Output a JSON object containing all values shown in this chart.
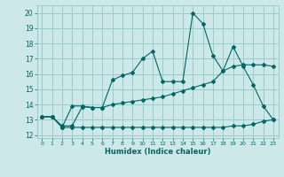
{
  "xlabel": "Humidex (Indice chaleur)",
  "background_color": "#cce8e8",
  "grid_color": "#99cccc",
  "line_color": "#006666",
  "xlim": [
    -0.5,
    23.5
  ],
  "ylim": [
    11.8,
    20.5
  ],
  "yticks": [
    12,
    13,
    14,
    15,
    16,
    17,
    18,
    19,
    20
  ],
  "xticks": [
    0,
    1,
    2,
    3,
    4,
    5,
    6,
    7,
    8,
    9,
    10,
    11,
    12,
    13,
    14,
    15,
    16,
    17,
    18,
    19,
    20,
    21,
    22,
    23
  ],
  "series1_x": [
    0,
    1,
    2,
    3,
    4,
    5,
    6,
    7,
    8,
    9,
    10,
    11,
    12,
    13,
    14,
    15,
    16,
    17,
    18,
    19,
    20,
    21,
    22,
    23
  ],
  "series1_y": [
    13.2,
    13.2,
    12.5,
    13.9,
    13.9,
    13.8,
    13.8,
    15.6,
    15.9,
    16.1,
    17.0,
    17.5,
    15.5,
    15.5,
    15.5,
    20.0,
    19.3,
    17.2,
    16.2,
    17.8,
    16.5,
    15.3,
    13.9,
    13.0
  ],
  "series2_x": [
    0,
    1,
    2,
    3,
    4,
    5,
    6,
    7,
    8,
    9,
    10,
    11,
    12,
    13,
    14,
    15,
    16,
    17,
    18,
    19,
    20,
    21,
    22,
    23
  ],
  "series2_y": [
    13.2,
    13.2,
    12.6,
    12.6,
    13.85,
    13.8,
    13.8,
    14.0,
    14.1,
    14.2,
    14.3,
    14.4,
    14.5,
    14.7,
    14.9,
    15.1,
    15.3,
    15.5,
    16.2,
    16.5,
    16.6,
    16.6,
    16.6,
    16.5
  ],
  "series3_x": [
    0,
    1,
    2,
    3,
    4,
    5,
    6,
    7,
    8,
    9,
    10,
    11,
    12,
    13,
    14,
    15,
    16,
    17,
    18,
    19,
    20,
    21,
    22,
    23
  ],
  "series3_y": [
    13.2,
    13.2,
    12.5,
    12.5,
    12.5,
    12.5,
    12.5,
    12.5,
    12.5,
    12.5,
    12.5,
    12.5,
    12.5,
    12.5,
    12.5,
    12.5,
    12.5,
    12.5,
    12.5,
    12.6,
    12.6,
    12.7,
    12.9,
    13.0
  ]
}
